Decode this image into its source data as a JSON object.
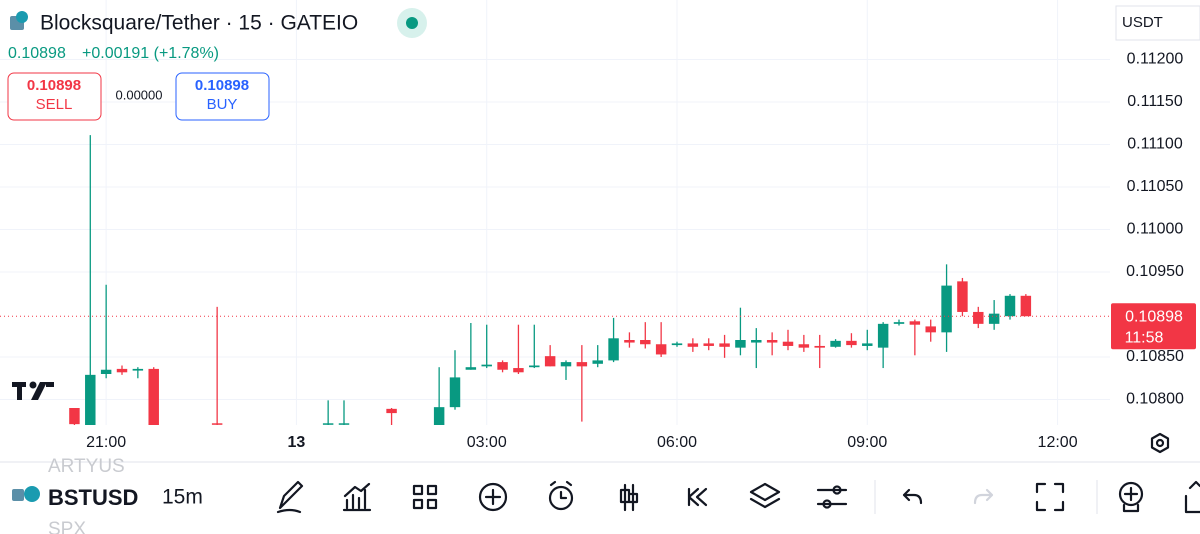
{
  "ui": {
    "title": "Blocksquare/Tether · 15 · GATEIO",
    "quote": "0.10898",
    "change": "+0.00191 (+1.78%)",
    "sell_price": "0.10898",
    "sell": "SELL",
    "spread": "0.00000",
    "buy_price": "0.10898",
    "buy": "BUY",
    "currency": "USDT",
    "symbol_above": "ARTYUS",
    "symbol": "BSTUSD",
    "symbol_below": "SPX",
    "interval": "15m"
  },
  "chart_data": {
    "type": "candlestick",
    "up_color": "#089981",
    "down_color": "#f23645",
    "grid": true,
    "ylim": [
      0.1077,
      0.1127
    ],
    "yticks": [
      {
        "value": 0.112,
        "label": "0.11200"
      },
      {
        "value": 0.1115,
        "label": "0.11150"
      },
      {
        "value": 0.111,
        "label": "0.11100"
      },
      {
        "value": 0.1105,
        "label": "0.11050"
      },
      {
        "value": 0.11,
        "label": "0.11000"
      },
      {
        "value": 0.1095,
        "label": "0.10950"
      },
      {
        "value": 0.1085,
        "label": "0.10850"
      },
      {
        "value": 0.108,
        "label": "0.10800"
      }
    ],
    "last_label": "0.10898",
    "countdown": "11:58",
    "categories": [
      null,
      null,
      null,
      null,
      null,
      null,
      "21:00",
      null,
      null,
      null,
      null,
      null,
      null,
      null,
      null,
      null,
      null,
      null,
      "13",
      null,
      null,
      null,
      null,
      null,
      null,
      null,
      null,
      null,
      null,
      null,
      "03:00",
      null,
      null,
      null,
      null,
      null,
      null,
      null,
      null,
      null,
      null,
      null,
      "06:00",
      null,
      null,
      null,
      null,
      null,
      null,
      null,
      null,
      null,
      null,
      null,
      "09:00",
      null,
      null,
      null,
      null,
      null,
      null,
      null,
      null,
      null,
      null,
      null,
      "12:00",
      null,
      null,
      null
    ],
    "open": [
      null,
      null,
      null,
      null,
      0.1079,
      0.1077,
      0.1083,
      0.10836,
      0.10834,
      0.10836,
      null,
      null,
      null,
      0.10772,
      null,
      null,
      null,
      null,
      null,
      null,
      0.10771,
      0.10771,
      null,
      null,
      0.10789,
      null,
      null,
      0.1077,
      0.10791,
      0.10835,
      0.10839,
      0.10844,
      0.10837,
      0.10838,
      0.10851,
      0.10839,
      0.10844,
      0.10842,
      0.10846,
      0.1087,
      0.1087,
      0.10865,
      0.10864,
      0.10866,
      0.10866,
      0.10866,
      0.10861,
      0.10867,
      0.1087,
      0.10868,
      0.10865,
      0.10863,
      0.10862,
      0.10869,
      0.10863,
      0.10861,
      0.10889,
      0.10892,
      0.10886,
      0.10879,
      0.10939,
      0.10903,
      0.10889,
      0.10898,
      0.10922,
      null,
      null,
      null,
      null,
      null
    ],
    "high": [
      null,
      null,
      null,
      null,
      0.1079,
      0.11111,
      0.10935,
      0.1084,
      0.10838,
      0.10838,
      null,
      null,
      null,
      0.10909,
      null,
      null,
      null,
      null,
      null,
      null,
      0.10799,
      0.10799,
      null,
      null,
      0.1079,
      null,
      null,
      0.10838,
      0.10858,
      0.1089,
      0.10888,
      0.10846,
      0.10888,
      0.10888,
      0.10864,
      0.10846,
      0.10864,
      0.10864,
      0.10896,
      0.10879,
      0.10891,
      0.10891,
      0.10868,
      0.10872,
      0.10872,
      0.10876,
      0.10908,
      0.10884,
      0.10879,
      0.10882,
      0.10876,
      0.10876,
      0.10871,
      0.10878,
      0.10882,
      0.10891,
      0.10894,
      0.10894,
      0.10894,
      0.10959,
      0.10943,
      0.10909,
      0.10917,
      0.10924,
      0.10924,
      null,
      null,
      null,
      null,
      null
    ],
    "low": [
      null,
      null,
      null,
      null,
      0.1077,
      0.1077,
      0.10825,
      0.10829,
      0.10825,
      0.1077,
      null,
      null,
      null,
      0.1077,
      null,
      null,
      null,
      null,
      null,
      null,
      0.1077,
      0.1077,
      null,
      null,
      0.1077,
      null,
      null,
      0.1077,
      0.10788,
      0.10835,
      0.10837,
      0.10832,
      0.1083,
      0.10837,
      0.10839,
      0.10823,
      0.10774,
      0.10838,
      0.10844,
      0.10861,
      0.1086,
      0.1085,
      0.10862,
      0.10856,
      0.10858,
      0.10849,
      0.10852,
      0.10837,
      0.10852,
      0.10858,
      0.10856,
      0.10837,
      0.10861,
      0.10861,
      0.10858,
      0.10837,
      0.10887,
      0.10852,
      0.10868,
      0.10856,
      0.10898,
      0.10884,
      0.10882,
      0.10894,
      0.10898,
      null,
      null,
      null,
      null,
      null
    ],
    "close": [
      null,
      null,
      null,
      null,
      0.10771,
      0.10829,
      0.10835,
      0.10832,
      0.10836,
      0.1077,
      null,
      null,
      null,
      0.10771,
      null,
      null,
      null,
      null,
      null,
      null,
      0.10772,
      0.10772,
      null,
      null,
      0.10784,
      null,
      null,
      0.10791,
      0.10826,
      0.10838,
      0.10841,
      0.10835,
      0.10832,
      0.1084,
      0.10839,
      0.10844,
      0.10839,
      0.10846,
      0.10872,
      0.10867,
      0.10865,
      0.10853,
      0.10866,
      0.10862,
      0.10863,
      0.10862,
      0.1087,
      0.1087,
      0.10867,
      0.10863,
      0.10861,
      0.10861,
      0.10869,
      0.10864,
      0.10866,
      0.10889,
      0.10891,
      0.10888,
      0.10879,
      0.10934,
      0.10903,
      0.10889,
      0.10901,
      0.10922,
      0.10898,
      null,
      null,
      null,
      null,
      null
    ]
  }
}
